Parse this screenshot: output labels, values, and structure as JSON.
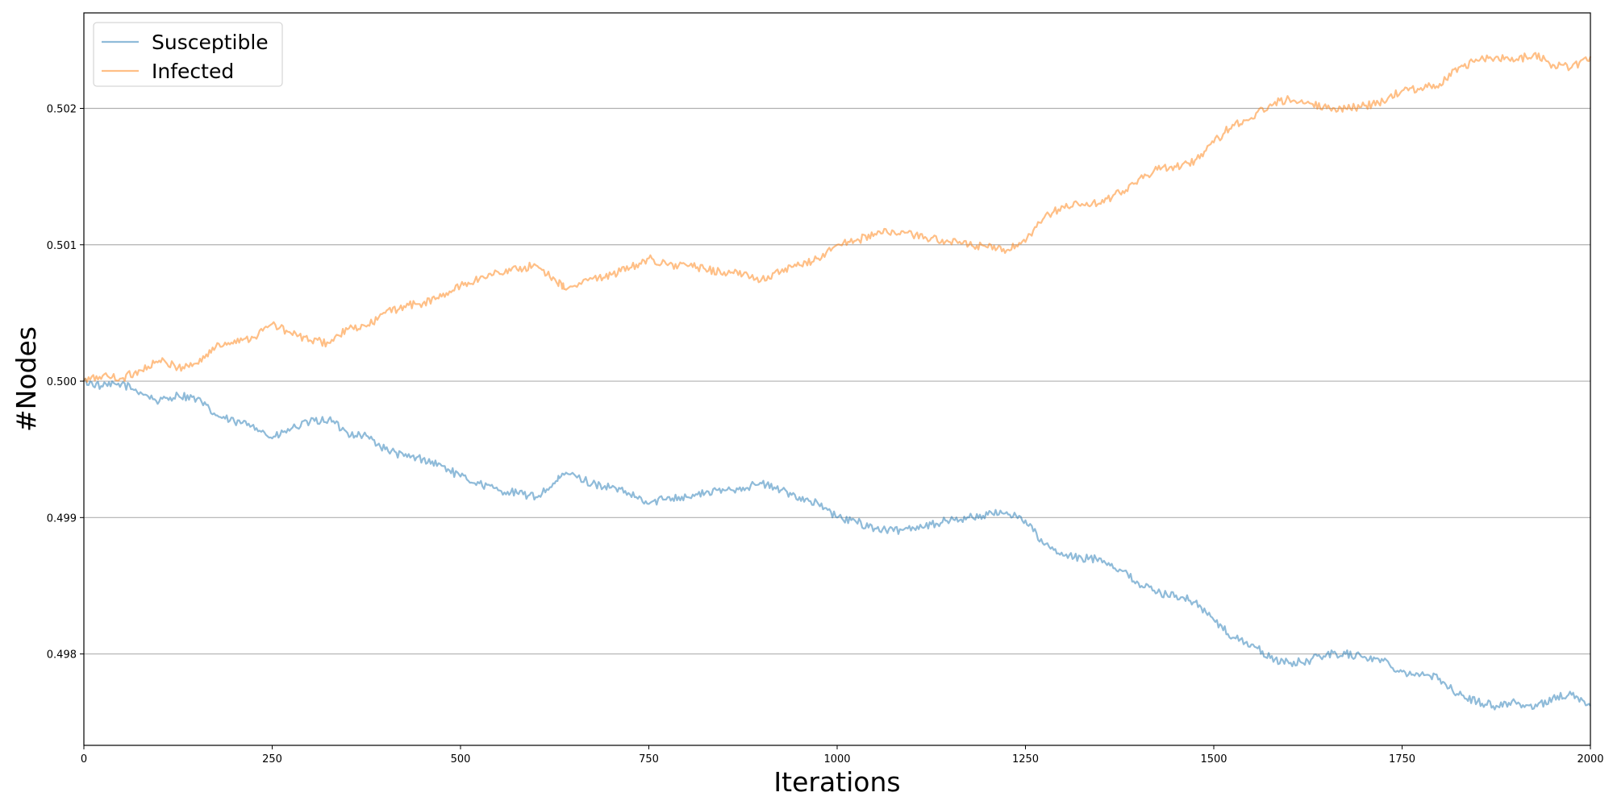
{
  "chart_data": {
    "type": "line",
    "xlabel": "Iterations",
    "ylabel": "#Nodes",
    "xlim": [
      0,
      2000
    ],
    "ylim": [
      0.49733,
      0.5027
    ],
    "x_ticks": [
      0,
      250,
      500,
      750,
      1000,
      1250,
      1500,
      1750,
      2000
    ],
    "y_ticks": [
      0.498,
      0.499,
      0.5,
      0.501,
      0.502
    ],
    "x_tick_labels": [
      "0",
      "250",
      "500",
      "750",
      "1000",
      "1250",
      "1500",
      "1750",
      "2000"
    ],
    "y_tick_labels": [
      "0.498",
      "0.499",
      "0.500",
      "0.501",
      "0.502"
    ],
    "grid": "horizontal",
    "legend_position": "top-left",
    "series": [
      {
        "name": "Susceptible",
        "color": "#1f77b4",
        "points": [
          [
            0,
            0.5
          ],
          [
            25,
            0.49996
          ],
          [
            50,
            0.49998
          ],
          [
            75,
            0.49992
          ],
          [
            100,
            0.49985
          ],
          [
            125,
            0.4999
          ],
          [
            150,
            0.49987
          ],
          [
            175,
            0.49975
          ],
          [
            200,
            0.4997
          ],
          [
            225,
            0.49968
          ],
          [
            250,
            0.49958
          ],
          [
            275,
            0.49965
          ],
          [
            300,
            0.4997
          ],
          [
            325,
            0.49972
          ],
          [
            350,
            0.49962
          ],
          [
            375,
            0.4996
          ],
          [
            400,
            0.4995
          ],
          [
            425,
            0.49945
          ],
          [
            450,
            0.49943
          ],
          [
            475,
            0.49938
          ],
          [
            500,
            0.4993
          ],
          [
            525,
            0.49925
          ],
          [
            550,
            0.4992
          ],
          [
            575,
            0.49918
          ],
          [
            600,
            0.49915
          ],
          [
            625,
            0.49925
          ],
          [
            640,
            0.49933
          ],
          [
            675,
            0.49925
          ],
          [
            700,
            0.49922
          ],
          [
            725,
            0.49917
          ],
          [
            750,
            0.4991
          ],
          [
            775,
            0.49915
          ],
          [
            800,
            0.49915
          ],
          [
            825,
            0.49918
          ],
          [
            850,
            0.4992
          ],
          [
            875,
            0.49922
          ],
          [
            900,
            0.49925
          ],
          [
            925,
            0.4992
          ],
          [
            950,
            0.49915
          ],
          [
            975,
            0.4991
          ],
          [
            1000,
            0.499
          ],
          [
            1025,
            0.49897
          ],
          [
            1050,
            0.49892
          ],
          [
            1075,
            0.4989
          ],
          [
            1100,
            0.49893
          ],
          [
            1125,
            0.49895
          ],
          [
            1150,
            0.49898
          ],
          [
            1175,
            0.499
          ],
          [
            1200,
            0.49902
          ],
          [
            1225,
            0.49904
          ],
          [
            1250,
            0.49898
          ],
          [
            1275,
            0.4988
          ],
          [
            1300,
            0.49872
          ],
          [
            1325,
            0.4987
          ],
          [
            1350,
            0.4987
          ],
          [
            1375,
            0.49862
          ],
          [
            1400,
            0.49852
          ],
          [
            1425,
            0.49845
          ],
          [
            1450,
            0.49843
          ],
          [
            1475,
            0.49838
          ],
          [
            1500,
            0.49825
          ],
          [
            1525,
            0.49812
          ],
          [
            1550,
            0.49807
          ],
          [
            1575,
            0.49797
          ],
          [
            1600,
            0.49793
          ],
          [
            1625,
            0.49795
          ],
          [
            1650,
            0.498
          ],
          [
            1675,
            0.498
          ],
          [
            1700,
            0.49798
          ],
          [
            1725,
            0.49795
          ],
          [
            1750,
            0.49787
          ],
          [
            1775,
            0.49785
          ],
          [
            1800,
            0.49782
          ],
          [
            1825,
            0.4977
          ],
          [
            1850,
            0.49765
          ],
          [
            1875,
            0.49762
          ],
          [
            1900,
            0.49765
          ],
          [
            1925,
            0.4976
          ],
          [
            1950,
            0.49768
          ],
          [
            1975,
            0.4977
          ],
          [
            2000,
            0.49762
          ]
        ]
      },
      {
        "name": "Infected",
        "color": "#ff7f0e",
        "points": [
          [
            0,
            0.5
          ],
          [
            25,
            0.50004
          ],
          [
            50,
            0.50002
          ],
          [
            75,
            0.50008
          ],
          [
            100,
            0.50015
          ],
          [
            125,
            0.5001
          ],
          [
            150,
            0.50013
          ],
          [
            175,
            0.50025
          ],
          [
            200,
            0.5003
          ],
          [
            225,
            0.50032
          ],
          [
            250,
            0.50042
          ],
          [
            275,
            0.50035
          ],
          [
            300,
            0.5003
          ],
          [
            325,
            0.50028
          ],
          [
            350,
            0.50038
          ],
          [
            375,
            0.5004
          ],
          [
            400,
            0.5005
          ],
          [
            425,
            0.50055
          ],
          [
            450,
            0.50057
          ],
          [
            475,
            0.50062
          ],
          [
            500,
            0.5007
          ],
          [
            525,
            0.50075
          ],
          [
            550,
            0.5008
          ],
          [
            575,
            0.50082
          ],
          [
            600,
            0.50085
          ],
          [
            625,
            0.50075
          ],
          [
            640,
            0.50067
          ],
          [
            675,
            0.50075
          ],
          [
            700,
            0.50078
          ],
          [
            725,
            0.50083
          ],
          [
            750,
            0.5009
          ],
          [
            775,
            0.50085
          ],
          [
            800,
            0.50085
          ],
          [
            825,
            0.50082
          ],
          [
            850,
            0.5008
          ],
          [
            875,
            0.50078
          ],
          [
            900,
            0.50075
          ],
          [
            925,
            0.5008
          ],
          [
            950,
            0.50085
          ],
          [
            975,
            0.5009
          ],
          [
            1000,
            0.501
          ],
          [
            1025,
            0.50103
          ],
          [
            1050,
            0.50108
          ],
          [
            1075,
            0.5011
          ],
          [
            1100,
            0.50107
          ],
          [
            1125,
            0.50105
          ],
          [
            1150,
            0.50102
          ],
          [
            1175,
            0.501
          ],
          [
            1200,
            0.50098
          ],
          [
            1225,
            0.50096
          ],
          [
            1250,
            0.50102
          ],
          [
            1275,
            0.5012
          ],
          [
            1300,
            0.50128
          ],
          [
            1325,
            0.5013
          ],
          [
            1350,
            0.5013
          ],
          [
            1375,
            0.50138
          ],
          [
            1400,
            0.50148
          ],
          [
            1425,
            0.50155
          ],
          [
            1450,
            0.50157
          ],
          [
            1475,
            0.50162
          ],
          [
            1500,
            0.50175
          ],
          [
            1525,
            0.50188
          ],
          [
            1550,
            0.50193
          ],
          [
            1575,
            0.50203
          ],
          [
            1600,
            0.50207
          ],
          [
            1625,
            0.50205
          ],
          [
            1650,
            0.502
          ],
          [
            1675,
            0.502
          ],
          [
            1700,
            0.50202
          ],
          [
            1725,
            0.50205
          ],
          [
            1750,
            0.50213
          ],
          [
            1775,
            0.50215
          ],
          [
            1800,
            0.50218
          ],
          [
            1825,
            0.5023
          ],
          [
            1850,
            0.50235
          ],
          [
            1875,
            0.50238
          ],
          [
            1900,
            0.50235
          ],
          [
            1925,
            0.5024
          ],
          [
            1950,
            0.50232
          ],
          [
            1975,
            0.5023
          ],
          [
            2000,
            0.50238
          ]
        ]
      }
    ]
  }
}
